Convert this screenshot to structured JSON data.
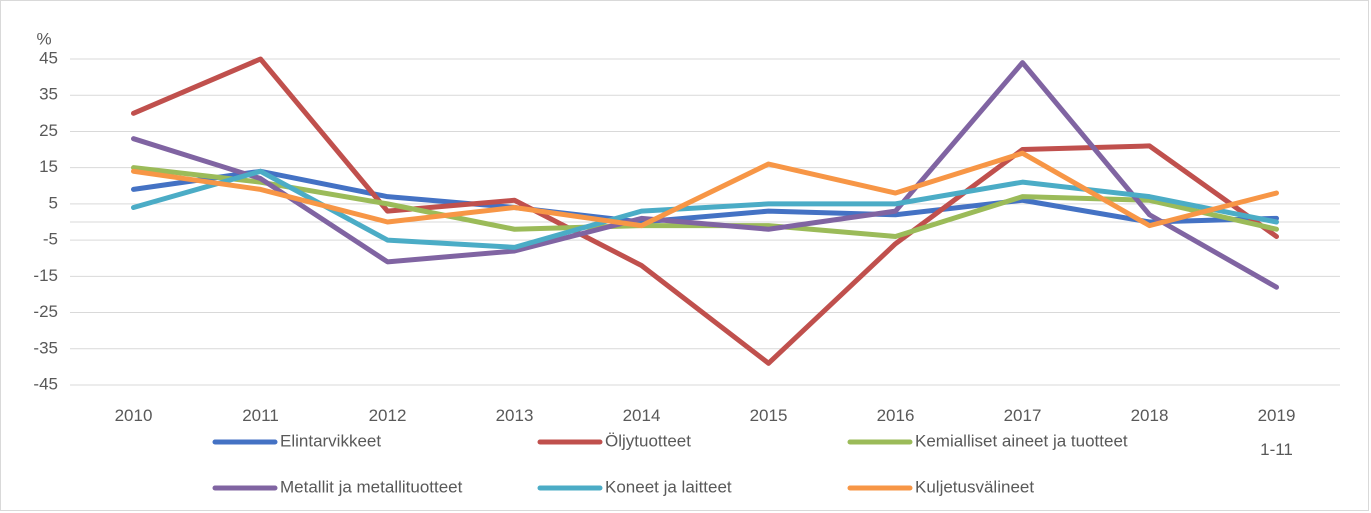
{
  "chart_data": {
    "type": "line",
    "y_label": "%",
    "categories": [
      "2010",
      "2011",
      "2012",
      "2013",
      "2014",
      "2015",
      "2016",
      "2017",
      "2018",
      "2019\n1-11"
    ],
    "ylim": [
      -45,
      45
    ],
    "yticks": [
      -45,
      -35,
      -25,
      -15,
      -5,
      5,
      15,
      25,
      35,
      45
    ],
    "grid": true,
    "legend": "bottom",
    "series": [
      {
        "name": "Elintarvikkeet",
        "color": "#4472c4",
        "values": [
          9,
          14,
          7,
          4,
          0,
          3,
          2,
          6,
          0,
          1
        ]
      },
      {
        "name": "Öljytuotteet",
        "color": "#c0504d",
        "values": [
          30,
          45,
          3,
          6,
          -12,
          -39,
          -6,
          20,
          21,
          -4
        ]
      },
      {
        "name": "Kemialliset aineet ja tuotteet",
        "color": "#9bbb59",
        "values": [
          15,
          11,
          5,
          -2,
          -1,
          -1,
          -4,
          7,
          6,
          -2
        ]
      },
      {
        "name": "Metallit ja metallituotteet",
        "color": "#8064a2",
        "values": [
          23,
          12,
          -11,
          -8,
          1,
          -2,
          3,
          44,
          2,
          -18
        ]
      },
      {
        "name": "Koneet ja laitteet",
        "color": "#4bacc6",
        "values": [
          4,
          14,
          -5,
          -7,
          3,
          5,
          5,
          11,
          7,
          0
        ]
      },
      {
        "name": "Kuljetusvälineet",
        "color": "#f79646",
        "values": [
          14,
          9,
          0,
          4,
          -1,
          16,
          8,
          19,
          -1,
          8
        ]
      }
    ]
  }
}
